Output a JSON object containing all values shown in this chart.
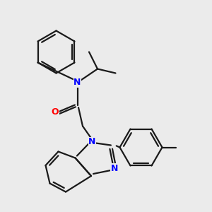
{
  "bg_color": "#ebebeb",
  "bond_color": "#1a1a1a",
  "N_color": "#0000ff",
  "O_color": "#ff0000",
  "lw": 1.6,
  "figsize": [
    3.0,
    3.0
  ],
  "dpi": 100,
  "xlim": [
    0,
    10
  ],
  "ylim": [
    0,
    10
  ]
}
